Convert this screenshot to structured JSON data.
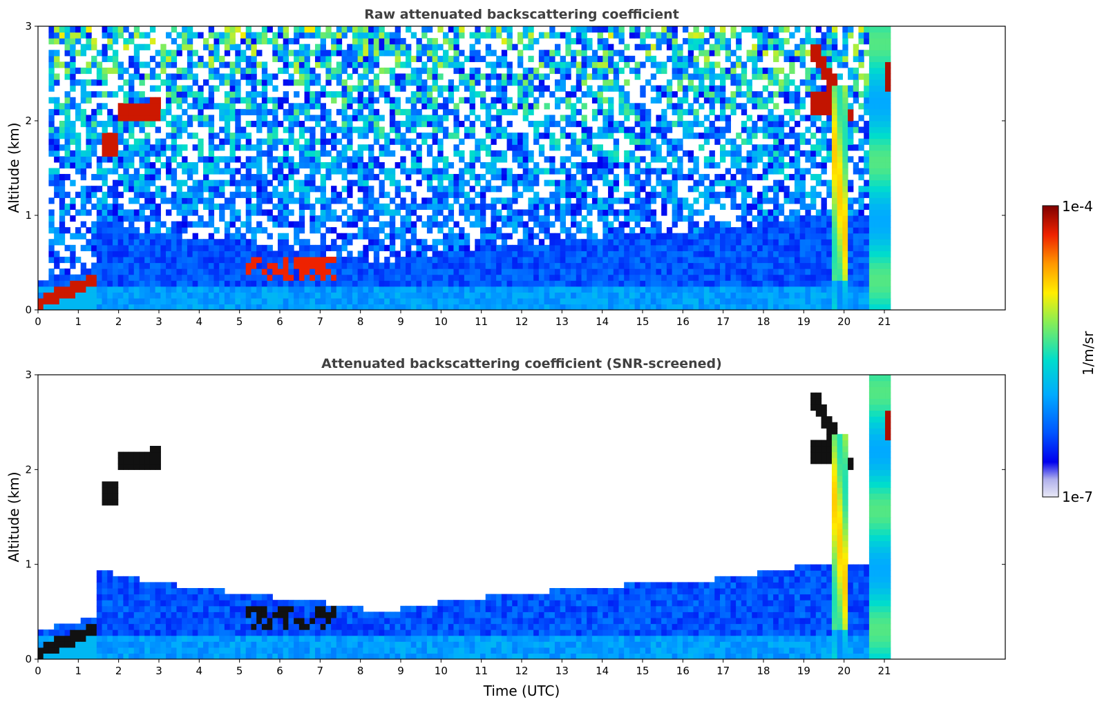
{
  "chart_data": [
    {
      "type": "heatmap",
      "title": "Raw attenuated backscattering coefficient",
      "xlabel": "",
      "ylabel": "Altitude (km)",
      "xlim": [
        0,
        24
      ],
      "ylim": [
        0,
        3
      ],
      "x_ticks": [
        "0",
        "1",
        "2",
        "3",
        "4",
        "5",
        "6",
        "7",
        "8",
        "9",
        "10",
        "11",
        "12",
        "13",
        "14",
        "15",
        "16",
        "17",
        "18",
        "19",
        "20",
        "21"
      ],
      "y_ticks": [
        "0",
        "1",
        "2",
        "3"
      ],
      "data_extent_hours": [
        0,
        21.15
      ],
      "features": [
        {
          "time_h": [
            0,
            1.4
          ],
          "alt_km": [
            0.0,
            0.35
          ],
          "level": "high"
        },
        {
          "time_h": [
            1.6,
            3.1
          ],
          "alt_km": [
            1.65,
            2.25
          ],
          "level": "high"
        },
        {
          "time_h": [
            5.2,
            7.4
          ],
          "alt_km": [
            0.35,
            0.6
          ],
          "level": "high"
        },
        {
          "time_h": [
            19.2,
            20.2
          ],
          "alt_km": [
            2.0,
            2.8
          ],
          "level": "high"
        },
        {
          "time_h": [
            19.75,
            20.1
          ],
          "alt_km": [
            0,
            2.4
          ],
          "level": "medium"
        },
        {
          "time_h": [
            20.6,
            21.15
          ],
          "alt_km": [
            0,
            3.0
          ],
          "level": "medium"
        },
        {
          "time_h": [
            1.4,
            19.7
          ],
          "alt_km": [
            0,
            0.5
          ],
          "level": "low"
        }
      ]
    },
    {
      "type": "heatmap",
      "title": "Attenuated backscattering coefficient (SNR-screened)",
      "xlabel": "Time (UTC)",
      "ylabel": "Altitude (km)",
      "xlim": [
        0,
        24
      ],
      "ylim": [
        0,
        3
      ],
      "x_ticks": [
        "0",
        "1",
        "2",
        "3",
        "4",
        "5",
        "6",
        "7",
        "8",
        "9",
        "10",
        "11",
        "12",
        "13",
        "14",
        "15",
        "16",
        "17",
        "18",
        "19",
        "20",
        "21"
      ],
      "y_ticks": [
        "0",
        "1",
        "2",
        "3"
      ],
      "data_extent_hours": [
        0,
        21.15
      ],
      "boundary_layer_top_km": [
        [
          1.4,
          0.95
        ],
        [
          3,
          0.8
        ],
        [
          5,
          0.7
        ],
        [
          7,
          0.6
        ],
        [
          8.5,
          0.5
        ],
        [
          10,
          0.6
        ],
        [
          12,
          0.7
        ],
        [
          13.8,
          0.75
        ],
        [
          15,
          0.8
        ],
        [
          17,
          0.85
        ],
        [
          18.5,
          0.95
        ],
        [
          19.3,
          1.0
        ]
      ]
    }
  ],
  "colorbar": {
    "label": "1/m/sr",
    "max_label": "1e-4",
    "min_label": "1e-7",
    "colormap": [
      "#e9e9f6",
      "#b0b0ec",
      "#0000ee",
      "#0055ff",
      "#00aaff",
      "#00ddcc",
      "#88ee55",
      "#ffee00",
      "#ff9900",
      "#ee2200",
      "#7f0000"
    ]
  }
}
